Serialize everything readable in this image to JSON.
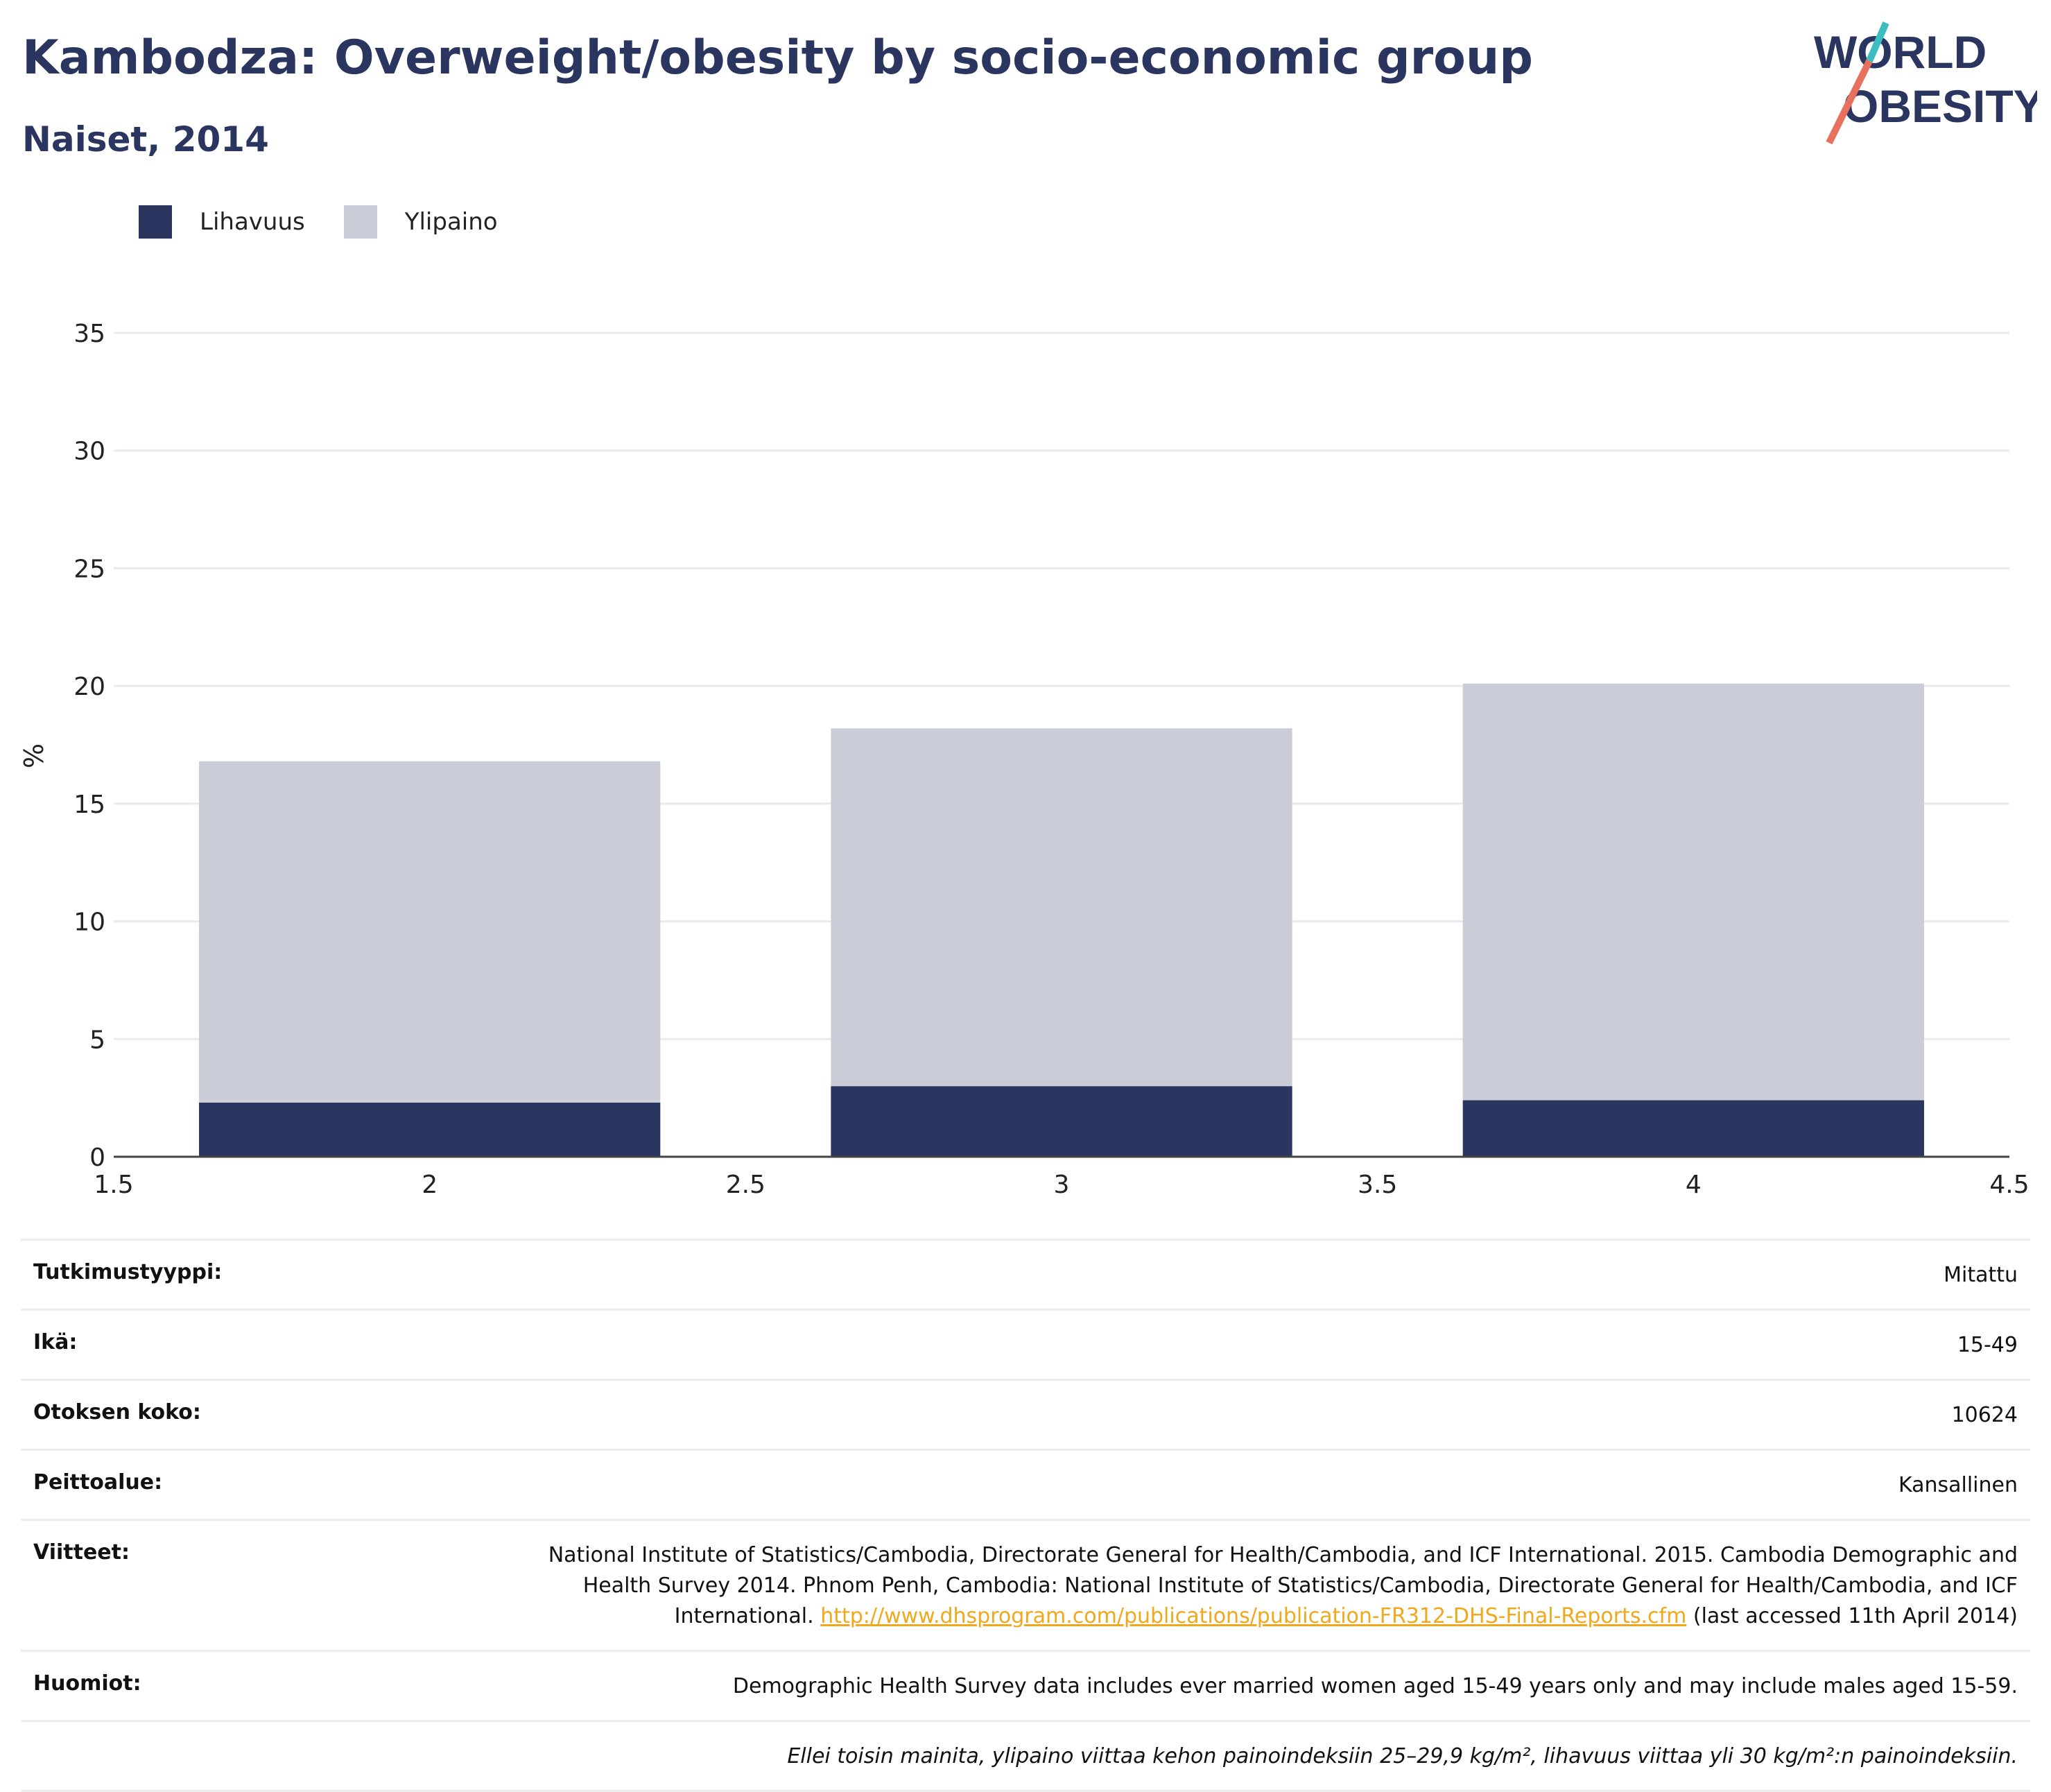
{
  "header": {
    "title": "Kambodza: Overweight/obesity by socio-economic group",
    "subtitle": "Naiset, 2014"
  },
  "logo": {
    "line1": "WORLD",
    "line2": "OBESITY"
  },
  "legend": [
    {
      "label": "Lihavuus",
      "color": "#2a3560"
    },
    {
      "label": "Ylipaino",
      "color": "#cacdd8"
    }
  ],
  "chart_data": {
    "type": "bar",
    "stacked": true,
    "x": [
      2,
      3,
      4
    ],
    "series": [
      {
        "name": "Lihavuus",
        "values": [
          2.3,
          3.0,
          2.4
        ],
        "color": "#2a3560"
      },
      {
        "name": "Ylipaino",
        "values": [
          14.5,
          15.2,
          17.7
        ],
        "color": "#cacdd8"
      }
    ],
    "xlim": [
      1.5,
      4.5
    ],
    "x_ticks": [
      "1.5",
      "2",
      "2.5",
      "3",
      "3.5",
      "4",
      "4.5"
    ],
    "ylim": [
      0,
      35
    ],
    "y_ticks": [
      "0",
      "5",
      "10",
      "15",
      "20",
      "25",
      "30",
      "35"
    ],
    "ylabel": "%",
    "grid": true,
    "legend_position": "top-left"
  },
  "meta": {
    "study_type_label": "Tutkimustyyppi:",
    "study_type_value": "Mitattu",
    "age_label": "Ikä:",
    "age_value": "15-49",
    "sample_label": "Otoksen koko:",
    "sample_value": "10624",
    "coverage_label": "Peittoalue:",
    "coverage_value": "Kansallinen",
    "refs_label": "Viitteet:",
    "refs_text": "National Institute of Statistics/Cambodia, Directorate General for Health/Cambodia, and ICF International. 2015. Cambodia Demographic and Health Survey 2014. Phnom Penh, Cambodia: National Institute of Statistics/Cambodia, Directorate General for Health/Cambodia, and ICF International.",
    "refs_link": "http://www.dhsprogram.com/publications/publication-FR312-DHS-Final-Reports.cfm",
    "refs_after": "(last accessed 11th April 2014)",
    "notes_label": "Huomiot:",
    "notes_value": "Demographic Health Survey data includes ever married women aged 15-49 years only and may include males aged 15-59.",
    "footnote": "Ellei toisin mainita, ylipaino viittaa kehon painoindeksiin 25–29,9 kg/m², lihavuus viittaa yli 30 kg/m²:n painoindeksiin."
  }
}
